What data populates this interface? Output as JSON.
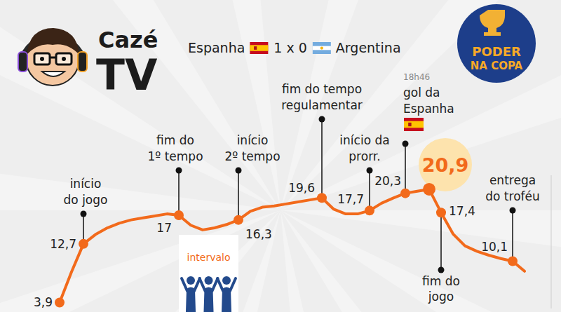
{
  "chart_data": {
    "type": "line",
    "title": "Espanha 1 x 0 Argentina",
    "annotations": {
      "goal_time": "18h46",
      "interval": "intervalo",
      "brand": "Cazé TV",
      "badge": "PODER NA COPA"
    },
    "categories": [
      null,
      null,
      "início do jogo",
      null,
      null,
      null,
      null,
      null,
      null,
      null,
      "fim do 1º tempo",
      null,
      null,
      null,
      null,
      "início 2º tempo",
      null,
      null,
      null,
      null,
      null,
      null,
      "fim do tempo regulamentar",
      null,
      null,
      null,
      "início da prorr.",
      null,
      null,
      "gol da Espanha",
      null,
      null,
      "fim do jogo",
      null,
      null,
      null,
      null,
      null,
      "entrega do troféu",
      null
    ],
    "values": [
      3.9,
      8.5,
      12.7,
      14.1,
      15.1,
      15.8,
      16.3,
      16.6,
      16.9,
      17.2,
      17,
      15.5,
      14.8,
      15.1,
      15.6,
      16.3,
      17.6,
      18.2,
      18.4,
      18.7,
      19.0,
      19.3,
      19.6,
      17.9,
      17.2,
      17.2,
      17.7,
      18.8,
      19.6,
      20.3,
      20.6,
      20.9,
      17.4,
      14.2,
      12.4,
      11.6,
      11.0,
      10.5,
      10.1,
      8.6
    ],
    "value_labels": [
      "3,9",
      null,
      "12,7",
      null,
      null,
      null,
      null,
      null,
      null,
      null,
      "17",
      null,
      null,
      null,
      null,
      "16,3",
      null,
      null,
      null,
      null,
      null,
      null,
      "19,6",
      null,
      null,
      null,
      "17,7",
      null,
      null,
      "20,3",
      null,
      "20,9",
      "17,4",
      null,
      null,
      null,
      null,
      null,
      "10,1",
      null
    ],
    "color": "#f26a1b",
    "ylim": [
      3,
      23
    ],
    "data_labels": true,
    "tick_labels": false,
    "grid": false
  }
}
